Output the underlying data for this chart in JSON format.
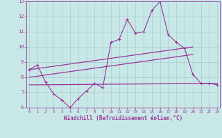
{
  "x_vals": [
    0,
    1,
    2,
    3,
    4,
    5,
    6,
    7,
    8,
    9,
    10,
    11,
    12,
    13,
    14,
    15,
    16,
    17,
    18,
    19,
    20,
    21,
    22,
    23
  ],
  "line1": [
    8.5,
    8.8,
    7.7,
    6.9,
    6.5,
    6.0,
    6.6,
    7.1,
    7.6,
    7.3,
    10.3,
    10.5,
    11.8,
    10.9,
    11.0,
    12.4,
    13.0,
    10.8,
    10.3,
    9.9,
    8.2,
    7.6,
    7.6,
    7.5
  ],
  "line2_x": [
    0,
    20
  ],
  "line2_y": [
    8.5,
    10.0
  ],
  "line3_x": [
    0,
    20
  ],
  "line3_y": [
    8.0,
    9.5
  ],
  "line4_x": [
    0,
    23
  ],
  "line4_y": [
    7.5,
    7.6
  ],
  "color": "#993399",
  "bg_color": "#c8e8e8",
  "grid_color": "#aacccc",
  "xlim": [
    -0.3,
    23.3
  ],
  "ylim": [
    6,
    13
  ],
  "yticks": [
    6,
    7,
    8,
    9,
    10,
    11,
    12,
    13
  ],
  "xticks": [
    0,
    1,
    2,
    3,
    4,
    5,
    6,
    7,
    8,
    9,
    10,
    11,
    12,
    13,
    14,
    15,
    16,
    17,
    18,
    19,
    20,
    21,
    22,
    23
  ],
  "xlabel": "Windchill (Refroidissement éolien,°C)"
}
